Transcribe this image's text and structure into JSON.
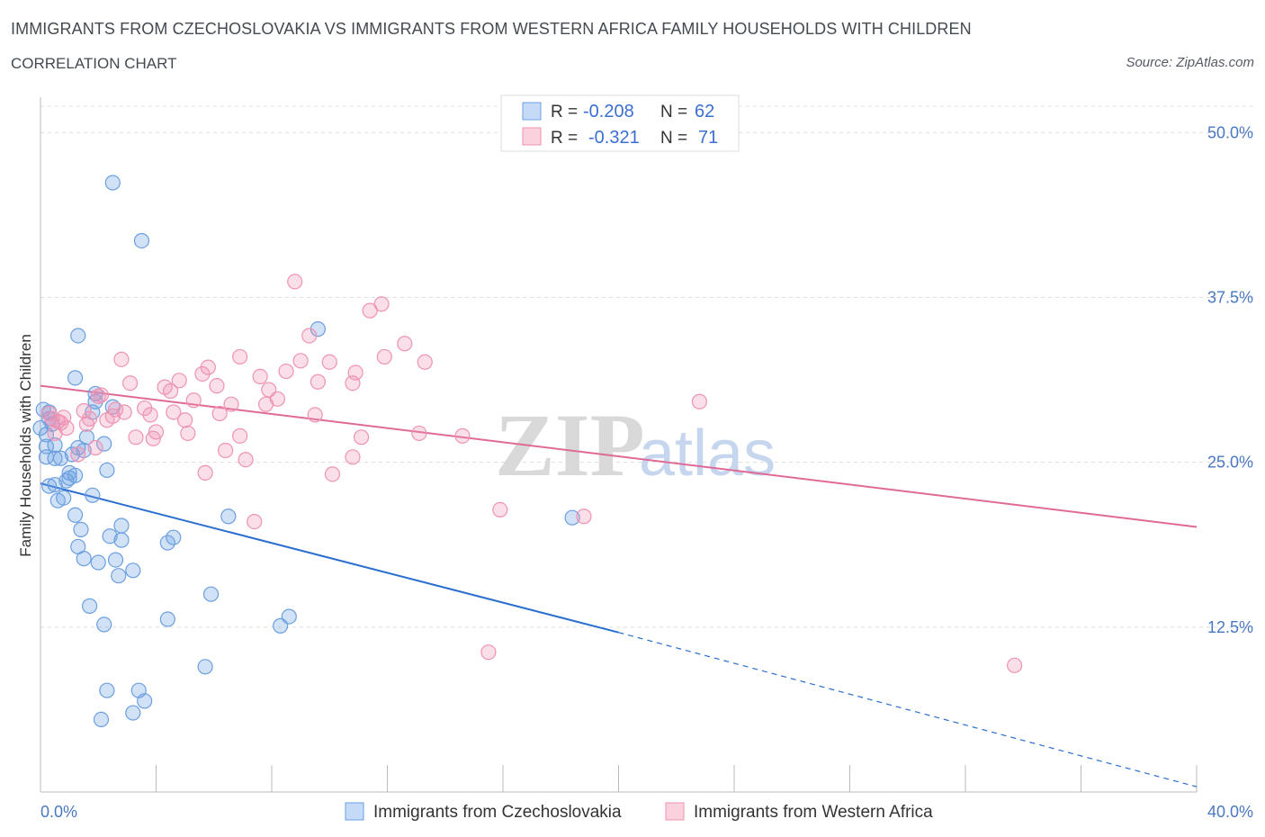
{
  "title": "IMMIGRANTS FROM CZECHOSLOVAKIA VS IMMIGRANTS FROM WESTERN AFRICA FAMILY HOUSEHOLDS WITH CHILDREN",
  "subtitle": "CORRELATION CHART",
  "source": "Source: ZipAtlas.com",
  "watermark": {
    "zip": "ZIP",
    "atlas": "atlas"
  },
  "chart_data": {
    "type": "scatter",
    "xlabel": "",
    "ylabel": "Family Households with Children",
    "xlim": [
      0,
      40
    ],
    "ylim": [
      0,
      52
    ],
    "x_tick_labels": {
      "left": "0.0%",
      "right": "40.0%"
    },
    "y_ticks": [
      {
        "value": 12.5,
        "label": "12.5%"
      },
      {
        "value": 25.0,
        "label": "25.0%"
      },
      {
        "value": 37.5,
        "label": "37.5%"
      },
      {
        "value": 50.0,
        "label": "50.0%"
      }
    ],
    "grid": true,
    "legend_position": "top-center",
    "legend_rows": [
      {
        "series": "Immigrants from Czechoslovakia",
        "r_label": "R =",
        "r_value": "-0.208",
        "n_label": "N =",
        "n_value": "62"
      },
      {
        "series": "Immigrants from Western Africa",
        "r_label": "R =",
        "r_value": "-0.321",
        "n_label": "N =",
        "n_value": "71"
      }
    ],
    "series": [
      {
        "name": "Immigrants from Czechoslovakia",
        "color": "#6b9fe0",
        "line_color": "#2a6fcf",
        "trend": {
          "x0": 0,
          "y0": 23.4,
          "x1": 20,
          "y1": 12.1,
          "dash_to_x": 40,
          "dash_to_y": 0.4
        },
        "points": [
          [
            2.5,
            46.2
          ],
          [
            3.5,
            41.8
          ],
          [
            1.3,
            34.6
          ],
          [
            9.6,
            35.1
          ],
          [
            1.2,
            31.4
          ],
          [
            0.1,
            29.0
          ],
          [
            0.3,
            28.8
          ],
          [
            1.9,
            30.2
          ],
          [
            1.8,
            28.8
          ],
          [
            1.9,
            29.6
          ],
          [
            2.5,
            29.2
          ],
          [
            0.3,
            28.3
          ],
          [
            0.0,
            27.6
          ],
          [
            0.2,
            27.1
          ],
          [
            1.6,
            26.9
          ],
          [
            0.5,
            26.3
          ],
          [
            0.2,
            26.2
          ],
          [
            1.3,
            26.1
          ],
          [
            1.5,
            25.9
          ],
          [
            2.2,
            26.4
          ],
          [
            1.1,
            25.6
          ],
          [
            0.2,
            25.4
          ],
          [
            0.5,
            25.3
          ],
          [
            0.7,
            25.3
          ],
          [
            2.3,
            24.4
          ],
          [
            1.2,
            24.0
          ],
          [
            1.0,
            23.8
          ],
          [
            0.9,
            23.6
          ],
          [
            0.5,
            23.3
          ],
          [
            0.3,
            23.2
          ],
          [
            0.6,
            22.1
          ],
          [
            0.8,
            22.3
          ],
          [
            1.8,
            22.5
          ],
          [
            1.2,
            21.0
          ],
          [
            6.5,
            20.9
          ],
          [
            18.4,
            20.8
          ],
          [
            2.8,
            20.2
          ],
          [
            1.4,
            19.9
          ],
          [
            2.4,
            19.4
          ],
          [
            4.6,
            19.3
          ],
          [
            2.8,
            19.1
          ],
          [
            4.4,
            18.9
          ],
          [
            1.3,
            18.6
          ],
          [
            1.5,
            17.7
          ],
          [
            2.6,
            17.6
          ],
          [
            2.0,
            17.4
          ],
          [
            3.2,
            16.8
          ],
          [
            2.7,
            16.4
          ],
          [
            5.9,
            15.0
          ],
          [
            1.7,
            14.1
          ],
          [
            8.6,
            13.3
          ],
          [
            4.4,
            13.1
          ],
          [
            2.2,
            12.7
          ],
          [
            8.3,
            12.6
          ],
          [
            5.7,
            9.5
          ],
          [
            2.3,
            7.7
          ],
          [
            3.4,
            7.7
          ],
          [
            3.6,
            6.9
          ],
          [
            3.2,
            6.0
          ],
          [
            2.1,
            5.5
          ],
          [
            0.4,
            27.9
          ],
          [
            1.0,
            24.2
          ]
        ]
      },
      {
        "name": "Immigrants from Western Africa",
        "color": "#ee93b3",
        "line_color": "#e06a96",
        "trend": {
          "x0": 0,
          "y0": 30.8,
          "x1": 40,
          "y1": 20.1
        },
        "points": [
          [
            8.8,
            38.7
          ],
          [
            11.8,
            37.0
          ],
          [
            11.4,
            36.5
          ],
          [
            9.3,
            34.6
          ],
          [
            12.6,
            34.0
          ],
          [
            6.9,
            33.0
          ],
          [
            11.9,
            33.0
          ],
          [
            2.8,
            32.8
          ],
          [
            9.0,
            32.7
          ],
          [
            10.0,
            32.6
          ],
          [
            13.3,
            32.6
          ],
          [
            5.8,
            32.2
          ],
          [
            8.5,
            31.9
          ],
          [
            10.9,
            31.8
          ],
          [
            5.6,
            31.7
          ],
          [
            7.6,
            31.5
          ],
          [
            4.8,
            31.2
          ],
          [
            3.1,
            31.0
          ],
          [
            9.6,
            31.1
          ],
          [
            10.8,
            31.0
          ],
          [
            4.3,
            30.7
          ],
          [
            6.1,
            30.8
          ],
          [
            4.5,
            30.4
          ],
          [
            7.9,
            30.5
          ],
          [
            2.1,
            30.1
          ],
          [
            5.3,
            29.7
          ],
          [
            8.2,
            29.8
          ],
          [
            7.8,
            29.4
          ],
          [
            6.6,
            29.4
          ],
          [
            22.8,
            29.6
          ],
          [
            3.6,
            29.1
          ],
          [
            2.6,
            29.0
          ],
          [
            1.5,
            28.9
          ],
          [
            2.9,
            28.8
          ],
          [
            4.6,
            28.8
          ],
          [
            6.2,
            28.7
          ],
          [
            0.3,
            28.7
          ],
          [
            3.8,
            28.6
          ],
          [
            9.5,
            28.6
          ],
          [
            2.5,
            28.5
          ],
          [
            0.8,
            28.4
          ],
          [
            1.7,
            28.3
          ],
          [
            0.4,
            28.3
          ],
          [
            5.0,
            28.2
          ],
          [
            0.6,
            28.1
          ],
          [
            2.3,
            28.2
          ],
          [
            1.6,
            27.9
          ],
          [
            0.9,
            27.6
          ],
          [
            0.5,
            27.2
          ],
          [
            4.0,
            27.3
          ],
          [
            13.1,
            27.2
          ],
          [
            5.1,
            27.2
          ],
          [
            14.6,
            27.0
          ],
          [
            6.9,
            27.0
          ],
          [
            3.3,
            26.9
          ],
          [
            11.1,
            26.9
          ],
          [
            3.9,
            26.8
          ],
          [
            1.9,
            26.1
          ],
          [
            6.4,
            25.9
          ],
          [
            1.3,
            25.6
          ],
          [
            7.1,
            25.2
          ],
          [
            10.8,
            25.4
          ],
          [
            5.7,
            24.2
          ],
          [
            10.1,
            24.1
          ],
          [
            15.9,
            21.4
          ],
          [
            18.8,
            20.9
          ],
          [
            7.4,
            20.5
          ],
          [
            15.5,
            10.6
          ],
          [
            33.7,
            9.6
          ],
          [
            0.7,
            28.0
          ],
          [
            2.0,
            30.0
          ]
        ]
      }
    ]
  },
  "bottom_legend": [
    {
      "label": "Immigrants from Czechoslovakia"
    },
    {
      "label": "Immigrants from Western Africa"
    }
  ]
}
